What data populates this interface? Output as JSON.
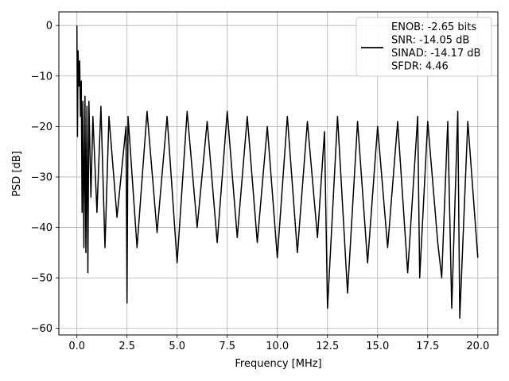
{
  "chart_data": {
    "type": "line",
    "xlabel": "Frequency [MHz]",
    "ylabel": "PSD [dB]",
    "xlim": [
      -0.9,
      21.0
    ],
    "ylim": [
      -61.3,
      2.7
    ],
    "xticks": [
      0.0,
      2.5,
      5.0,
      7.5,
      10.0,
      12.5,
      15.0,
      17.5,
      20.0
    ],
    "xtick_labels": [
      "0.0",
      "2.5",
      "5.0",
      "7.5",
      "10.0",
      "12.5",
      "15.0",
      "17.5",
      "20.0"
    ],
    "yticks": [
      0,
      -10,
      -20,
      -30,
      -40,
      -50,
      -60
    ],
    "ytick_labels": [
      "0",
      "−10",
      "−20",
      "−30",
      "−40",
      "−50",
      "−60"
    ],
    "grid": true,
    "legend_position": "top-right",
    "legend_entries": [
      "ENOB: -2.65 bits",
      "SNR: -14.05 dB",
      "SINAD: -14.17 dB",
      "SFDR: 4.46"
    ],
    "series": [
      {
        "color": "#000000",
        "style": "solid",
        "x": [
          0.0,
          0.03,
          0.06,
          0.1,
          0.14,
          0.18,
          0.22,
          0.26,
          0.3,
          0.35,
          0.4,
          0.45,
          0.5,
          0.55,
          0.6,
          0.7,
          0.8,
          1.0,
          1.2,
          1.4,
          1.6,
          2.0,
          2.45,
          2.5,
          2.55,
          3.0,
          3.5,
          4.0,
          4.5,
          5.0,
          5.5,
          6.0,
          6.5,
          7.0,
          7.5,
          8.0,
          8.5,
          9.0,
          9.5,
          10.0,
          10.5,
          11.0,
          11.5,
          12.0,
          12.35,
          12.5,
          13.0,
          13.5,
          14.0,
          14.5,
          15.0,
          15.5,
          16.0,
          16.5,
          17.0,
          17.1,
          17.5,
          18.0,
          18.2,
          18.5,
          18.7,
          19.0,
          19.1,
          19.5,
          20.0
        ],
        "y": [
          0.0,
          -22.0,
          -5.0,
          -12.0,
          -7.0,
          -18.0,
          -11.0,
          -37.0,
          -15.0,
          -44.0,
          -14.0,
          -45.0,
          -16.0,
          -49.0,
          -15.0,
          -34.0,
          -18.0,
          -37.0,
          -16.0,
          -44.0,
          -18.0,
          -38.0,
          -20.0,
          -55.0,
          -18.0,
          -44.0,
          -17.0,
          -41.0,
          -18.0,
          -47.0,
          -17.0,
          -40.0,
          -19.0,
          -43.0,
          -17.0,
          -42.0,
          -18.0,
          -43.0,
          -20.0,
          -46.0,
          -18.0,
          -45.0,
          -19.0,
          -42.0,
          -21.0,
          -56.0,
          -18.0,
          -53.0,
          -19.0,
          -47.0,
          -20.0,
          -44.0,
          -19.0,
          -49.0,
          -18.0,
          -50.0,
          -19.0,
          -43.0,
          -50.0,
          -19.0,
          -56.0,
          -17.0,
          -58.0,
          -19.0,
          -46.0
        ]
      }
    ]
  }
}
